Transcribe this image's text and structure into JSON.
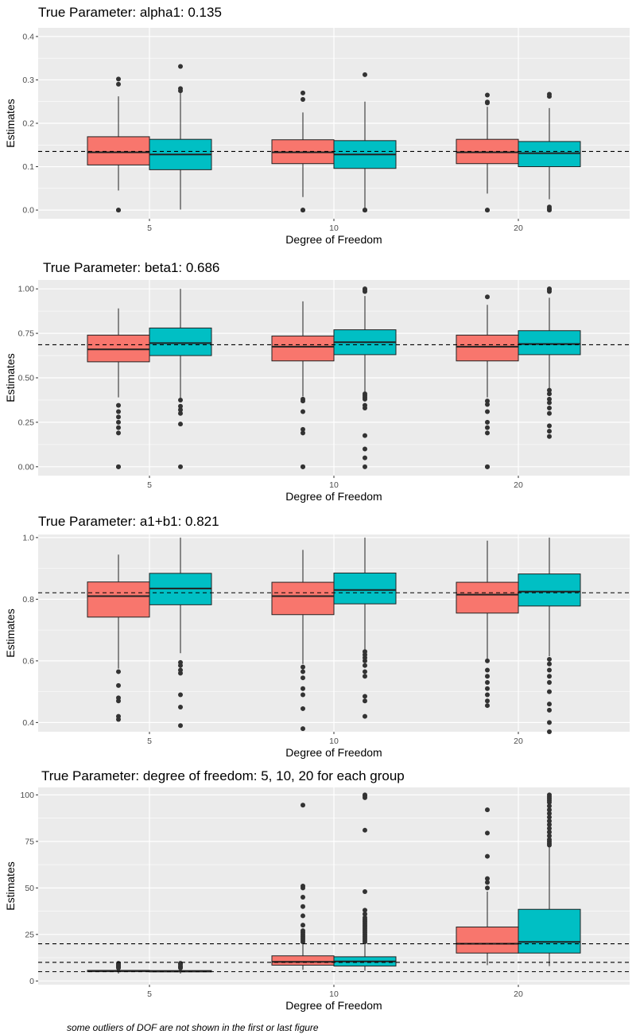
{
  "colors": {
    "panel_bg": "#EBEBEB",
    "grid": "#FFFFFF",
    "group_a": "#F8766D",
    "group_b": "#00BFC4",
    "box_stroke": "#222222",
    "outlier": "#333333",
    "ref_line": "#000000"
  },
  "footnote": "some outliers of DOF are not shown in the first or last figure",
  "chart_data": [
    {
      "type": "boxplot",
      "title": "True Parameter: alpha1: 0.135",
      "xlabel": "Degree of Freedom",
      "ylabel": "Estimates",
      "categories": [
        "5",
        "10",
        "20"
      ],
      "ylim": [
        -0.02,
        0.42
      ],
      "yticks": [
        "0.0",
        "0.1",
        "0.2",
        "0.3",
        "0.4"
      ],
      "yticks_values": [
        0.0,
        0.1,
        0.2,
        0.3,
        0.4
      ],
      "reference_lines": [
        0.135
      ],
      "legend": "none",
      "series": [
        {
          "boxes": [
            {
              "whisker_low": 0.045,
              "q1": 0.104,
              "median": 0.133,
              "q3": 0.169,
              "whisker_high": 0.262,
              "outliers": [
                0.0,
                0.0,
                0.29,
                0.302
              ]
            },
            {
              "whisker_low": 0.03,
              "q1": 0.107,
              "median": 0.133,
              "q3": 0.162,
              "whisker_high": 0.225,
              "outliers": [
                0.0,
                0.0,
                0.255,
                0.27
              ]
            },
            {
              "whisker_low": 0.038,
              "q1": 0.107,
              "median": 0.133,
              "q3": 0.163,
              "whisker_high": 0.238,
              "outliers": [
                0.0,
                0.0,
                0.247,
                0.249,
                0.265
              ]
            }
          ]
        },
        {
          "boxes": [
            {
              "whisker_low": 0.001,
              "q1": 0.093,
              "median": 0.128,
              "q3": 0.163,
              "whisker_high": 0.27,
              "outliers": [
                0.275,
                0.28,
                0.331
              ]
            },
            {
              "whisker_low": 0.005,
              "q1": 0.096,
              "median": 0.128,
              "q3": 0.16,
              "whisker_high": 0.25,
              "outliers": [
                0.0,
                0.0,
                0.0,
                0.312
              ]
            },
            {
              "whisker_low": 0.025,
              "q1": 0.1,
              "median": 0.131,
              "q3": 0.158,
              "whisker_high": 0.235,
              "outliers": [
                0.0,
                0.003,
                0.007,
                0.262,
                0.267
              ]
            }
          ]
        }
      ]
    },
    {
      "type": "boxplot",
      "title": "True Parameter: beta1: 0.686",
      "xlabel": "Degree of Freedom",
      "ylabel": "Estimates",
      "categories": [
        "5",
        "10",
        "20"
      ],
      "ylim": [
        -0.05,
        1.05
      ],
      "yticks": [
        "0.00",
        "0.25",
        "0.50",
        "0.75",
        "1.00"
      ],
      "yticks_values": [
        0.0,
        0.25,
        0.5,
        0.75,
        1.0
      ],
      "reference_lines": [
        0.686
      ],
      "legend": "none",
      "series": [
        {
          "boxes": [
            {
              "whisker_low": 0.39,
              "q1": 0.59,
              "median": 0.66,
              "q3": 0.74,
              "whisker_high": 0.89,
              "outliers": [
                0.0,
                0.0,
                0.19,
                0.22,
                0.25,
                0.28,
                0.31,
                0.345
              ]
            },
            {
              "whisker_low": 0.395,
              "q1": 0.595,
              "median": 0.675,
              "q3": 0.735,
              "whisker_high": 0.93,
              "outliers": [
                0.0,
                0.0,
                0.19,
                0.21,
                0.31,
                0.37,
                0.38
              ]
            },
            {
              "whisker_low": 0.39,
              "q1": 0.595,
              "median": 0.675,
              "q3": 0.74,
              "whisker_high": 0.91,
              "outliers": [
                0.0,
                0.0,
                0.19,
                0.22,
                0.25,
                0.31,
                0.35,
                0.37,
                0.955
              ]
            }
          ]
        },
        {
          "boxes": [
            {
              "whisker_low": 0.385,
              "q1": 0.625,
              "median": 0.695,
              "q3": 0.78,
              "whisker_high": 1.0,
              "outliers": [
                0.0,
                0.24,
                0.3,
                0.32,
                0.34,
                0.375
              ]
            },
            {
              "whisker_low": 0.41,
              "q1": 0.63,
              "median": 0.7,
              "q3": 0.77,
              "whisker_high": 0.96,
              "outliers": [
                0.0,
                0.05,
                0.1,
                0.175,
                0.33,
                0.345,
                0.38,
                0.39,
                0.4,
                0.41,
                0.985,
                0.995,
                1.0
              ]
            },
            {
              "whisker_low": 0.44,
              "q1": 0.63,
              "median": 0.69,
              "q3": 0.765,
              "whisker_high": 0.95,
              "outliers": [
                0.17,
                0.2,
                0.23,
                0.3,
                0.33,
                0.36,
                0.38,
                0.41,
                0.43,
                0.985,
                0.995,
                1.0
              ]
            }
          ]
        }
      ]
    },
    {
      "type": "boxplot",
      "title": "True Parameter: a1+b1: 0.821",
      "xlabel": "Degree of Freedom",
      "ylabel": "Estimates",
      "categories": [
        "5",
        "10",
        "20"
      ],
      "ylim": [
        0.37,
        1.01
      ],
      "yticks": [
        "0.4",
        "0.6",
        "0.8",
        "1.0"
      ],
      "yticks_values": [
        0.4,
        0.6,
        0.8,
        1.0
      ],
      "reference_lines": [
        0.821
      ],
      "legend": "none",
      "series": [
        {
          "boxes": [
            {
              "whisker_low": 0.575,
              "q1": 0.742,
              "median": 0.81,
              "q3": 0.856,
              "whisker_high": 0.945,
              "outliers": [
                0.41,
                0.42,
                0.47,
                0.48,
                0.52,
                0.565
              ]
            },
            {
              "whisker_low": 0.59,
              "q1": 0.75,
              "median": 0.81,
              "q3": 0.855,
              "whisker_high": 0.96,
              "outliers": [
                0.38,
                0.445,
                0.49,
                0.51,
                0.545,
                0.565,
                0.58
              ]
            },
            {
              "whisker_low": 0.605,
              "q1": 0.755,
              "median": 0.815,
              "q3": 0.855,
              "whisker_high": 0.99,
              "outliers": [
                0.455,
                0.47,
                0.49,
                0.51,
                0.53,
                0.55,
                0.57,
                0.6
              ]
            }
          ]
        },
        {
          "boxes": [
            {
              "whisker_low": 0.625,
              "q1": 0.782,
              "median": 0.835,
              "q3": 0.884,
              "whisker_high": 1.0,
              "outliers": [
                0.39,
                0.45,
                0.49,
                0.56,
                0.57,
                0.585,
                0.595
              ]
            },
            {
              "whisker_low": 0.635,
              "q1": 0.785,
              "median": 0.83,
              "q3": 0.885,
              "whisker_high": 1.0,
              "outliers": [
                0.42,
                0.47,
                0.485,
                0.55,
                0.565,
                0.585,
                0.6,
                0.61,
                0.62,
                0.63
              ]
            },
            {
              "whisker_low": 0.615,
              "q1": 0.778,
              "median": 0.825,
              "q3": 0.882,
              "whisker_high": 1.0,
              "outliers": [
                0.37,
                0.4,
                0.44,
                0.46,
                0.5,
                0.53,
                0.55,
                0.57,
                0.59,
                0.605
              ]
            }
          ]
        }
      ]
    },
    {
      "type": "boxplot",
      "title": "True Parameter: degree of freedom: 5, 10, 20 for each group",
      "xlabel": "Degree of Freedom",
      "ylabel": "Estimates",
      "categories": [
        "5",
        "10",
        "20"
      ],
      "ylim": [
        -2,
        104
      ],
      "yticks": [
        "0",
        "25",
        "50",
        "75",
        "100"
      ],
      "yticks_values": [
        0,
        25,
        50,
        75,
        100
      ],
      "reference_lines": [
        5,
        10,
        20
      ],
      "legend": "none",
      "series": [
        {
          "boxes": [
            {
              "whisker_low": 4.0,
              "q1": 5.0,
              "median": 5.3,
              "q3": 5.7,
              "whisker_high": 6.7,
              "outliers": [
                7.0,
                7.5,
                8.0,
                8.5,
                9.0,
                9.5
              ]
            },
            {
              "whisker_low": 6.0,
              "q1": 8.5,
              "median": 10.3,
              "q3": 13.5,
              "whisker_high": 20.5,
              "outliers": [
                21,
                22,
                23,
                24,
                25,
                26,
                27,
                30,
                35,
                40,
                45,
                50,
                51,
                94.5
              ]
            },
            {
              "whisker_low": 8.5,
              "q1": 15,
              "median": 20,
              "q3": 29,
              "whisker_high": 48,
              "outliers": [
                50,
                53,
                55,
                67,
                79.5,
                92
              ]
            }
          ]
        },
        {
          "boxes": [
            {
              "whisker_low": 4.0,
              "q1": 4.9,
              "median": 5.2,
              "q3": 5.6,
              "whisker_high": 6.5,
              "outliers": [
                7.0,
                7.5,
                8.0,
                9.0,
                9.5
              ]
            },
            {
              "whisker_low": 5.5,
              "q1": 8,
              "median": 10.5,
              "q3": 13,
              "whisker_high": 20,
              "outliers": [
                21,
                22,
                23,
                24,
                25,
                26,
                27,
                28,
                29,
                30,
                31,
                32,
                33,
                34,
                36,
                38,
                48,
                81,
                98.5,
                99.5,
                100
              ]
            },
            {
              "whisker_low": 8,
              "q1": 15,
              "median": 21,
              "q3": 38.5,
              "whisker_high": 72,
              "outliers": [
                73,
                74,
                75,
                76,
                78,
                80,
                82,
                84,
                86,
                88,
                90,
                92,
                94,
                96,
                97,
                98,
                99,
                100
              ]
            }
          ]
        }
      ]
    }
  ]
}
